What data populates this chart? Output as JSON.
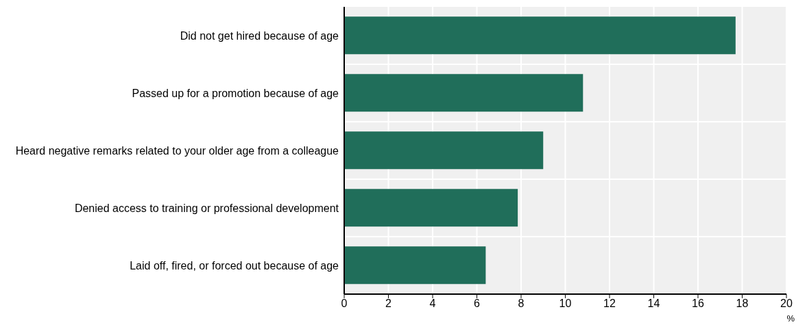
{
  "chart_data": {
    "type": "bar",
    "orientation": "horizontal",
    "xlabel": "%",
    "categories": [
      "Did not get hired because of age",
      "Passed up for a promotion because of age",
      "Heard negative remarks related to your older age from a colleague",
      "Denied access to training or professional development",
      "Laid off, fired, or forced out because of age"
    ],
    "values": [
      17.7,
      10.8,
      9.0,
      7.85,
      6.4
    ],
    "color": "#206e5a",
    "xlim": [
      0,
      20
    ],
    "xticks": [
      0,
      2,
      4,
      6,
      8,
      10,
      12,
      14,
      16,
      18,
      20
    ],
    "grid": true
  }
}
